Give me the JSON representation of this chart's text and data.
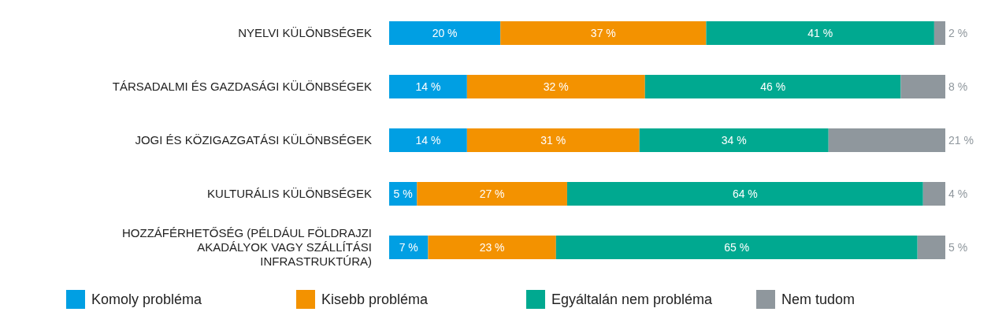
{
  "chart_data": {
    "type": "bar",
    "orientation": "horizontal",
    "stacked": true,
    "legend": "bottom",
    "categories": [
      "NYELVI KÜLÖNBSÉGEK",
      "TÁRSADALMI ÉS GAZDASÁGI KÜLÖNBSÉGEK",
      "JOGI ÉS KÖZIGAZGATÁSI KÜLÖNBSÉGEK",
      "KULTURÁLIS KÜLÖNBSÉGEK",
      "HOZZÁFÉRHETŐSÉG (PÉLDÁUL FÖLDRAJZI AKADÁLYOK VAGY SZÁLLÍTÁSI INFRASTRUKTÚRA)"
    ],
    "series": [
      {
        "name": "Komoly probléma",
        "color": "#009fe3",
        "values": [
          20,
          14,
          14,
          5,
          7
        ],
        "value_labels": [
          "20 %",
          "14 %",
          "14 %",
          "5 %",
          "7 %"
        ]
      },
      {
        "name": "Kisebb probléma",
        "color": "#f39200",
        "values": [
          37,
          32,
          31,
          27,
          23
        ],
        "value_labels": [
          "37 %",
          "32 %",
          "31 %",
          "27 %",
          "23 %"
        ]
      },
      {
        "name": "Egyáltalán nem probléma",
        "color": "#00a990",
        "values": [
          41,
          46,
          34,
          64,
          65
        ],
        "value_labels": [
          "41 %",
          "46 %",
          "34 %",
          "64 %",
          "65 %"
        ]
      },
      {
        "name": "Nem tudom",
        "color": "#8f979d",
        "values": [
          2,
          8,
          21,
          4,
          5
        ],
        "value_labels": [
          "2 %",
          "8 %",
          "21 %",
          "4 %",
          "5 %"
        ]
      }
    ]
  }
}
